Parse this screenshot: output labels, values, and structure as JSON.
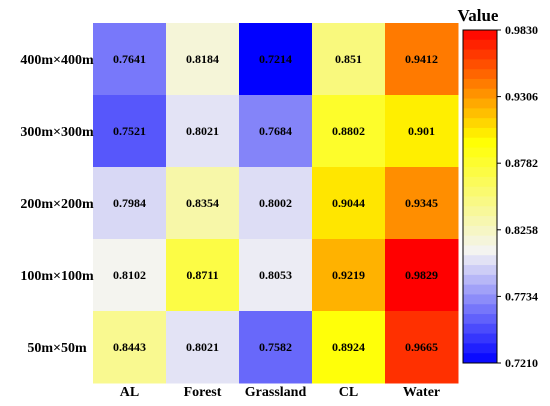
{
  "chart_data": {
    "type": "heatmap",
    "title": "",
    "xlabel": "",
    "ylabel": "",
    "x_categories": [
      "AL",
      "Forest",
      "Grassland",
      "CL",
      "Water"
    ],
    "y_categories": [
      "400m×400m",
      "300m×300m",
      "200m×200m",
      "100m×100m",
      "50m×50m"
    ],
    "values": [
      [
        "0.7641",
        "0.8184",
        "0.7214",
        "0.851",
        "0.9412"
      ],
      [
        "0.7521",
        "0.8021",
        "0.7684",
        "0.8802",
        "0.901"
      ],
      [
        "0.7984",
        "0.8354",
        "0.8002",
        "0.9044",
        "0.9345"
      ],
      [
        "0.8102",
        "0.8711",
        "0.8053",
        "0.9219",
        "0.9829"
      ],
      [
        "0.8443",
        "0.8021",
        "0.7582",
        "0.8924",
        "0.9665"
      ]
    ],
    "colorbar": {
      "title": "Value",
      "min": 0.721,
      "max": 0.983,
      "ticks": [
        "0.9830",
        "0.9306",
        "0.8782",
        "0.8258",
        "0.7734",
        "0.7210"
      ],
      "colors": [
        "#0000ff",
        "#f4f4f4",
        "#ffff00",
        "#ff0000"
      ]
    }
  }
}
